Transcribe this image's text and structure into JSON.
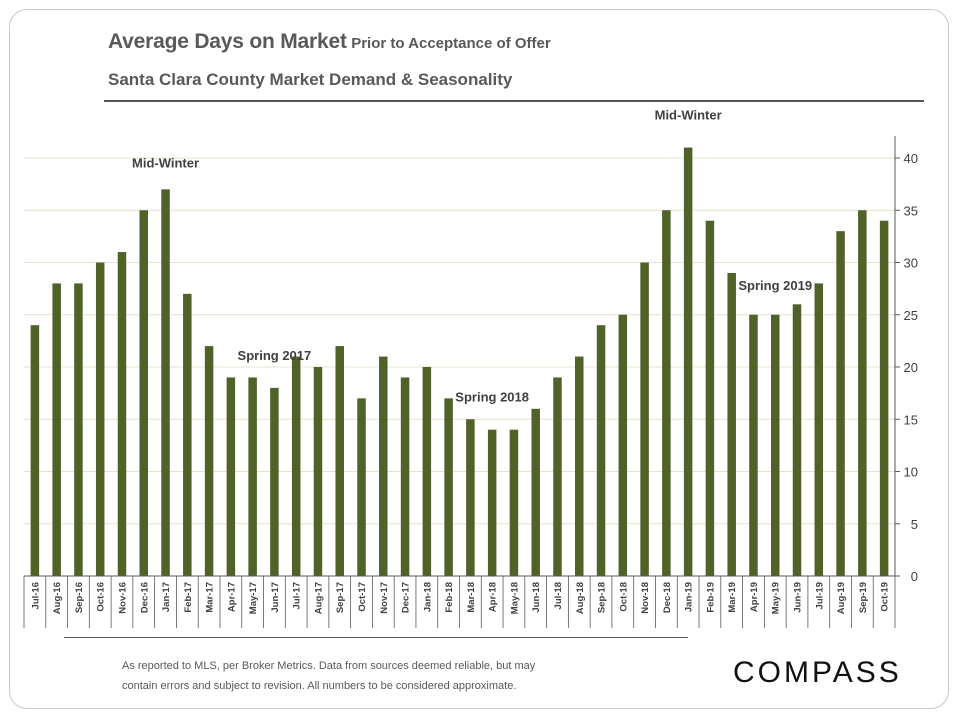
{
  "header": {
    "title": "Average Days on Market",
    "title_suffix": "Prior to Acceptance of Offer",
    "subtitle": "Santa Clara County Market Demand & Seasonality"
  },
  "footer": {
    "note_line1": "As reported to MLS, per Broker Metrics. Data from sources deemed reliable, but may",
    "note_line2": "contain errors and subject to revision. All numbers to be considered approximate.",
    "logo": "COMPASS"
  },
  "colors": {
    "bar": "#4f6228",
    "grid": "#e4e4cc",
    "axis": "#595959",
    "text": "#595959"
  },
  "chart_data": {
    "type": "bar",
    "title": "Average Days on Market",
    "subtitle": "Santa Clara County Market Demand & Seasonality",
    "xlabel": "",
    "ylabel": "",
    "ylim": [
      0,
      40
    ],
    "yticks": [
      0,
      5,
      10,
      15,
      20,
      25,
      30,
      35,
      40
    ],
    "y_axis_side": "right",
    "grid": true,
    "categories": [
      "Jul-16",
      "Aug-16",
      "Sep-16",
      "Oct-16",
      "Nov-16",
      "Dec-16",
      "Jan-17",
      "Feb-17",
      "Mar-17",
      "Apr-17",
      "May-17",
      "Jun-17",
      "Jul-17",
      "Aug-17",
      "Sep-17",
      "Oct-17",
      "Nov-17",
      "Dec-17",
      "Jan-18",
      "Feb-18",
      "Mar-18",
      "Apr-18",
      "May-18",
      "Jun-18",
      "Jul-18",
      "Aug-18",
      "Sep-18",
      "Oct-18",
      "Nov-18",
      "Dec-18",
      "Jan-19",
      "Feb-19",
      "Mar-19",
      "Apr-19",
      "May-19",
      "Jun-19",
      "Jul-19",
      "Aug-19",
      "Sep-19",
      "Oct-19"
    ],
    "values": [
      24,
      28,
      28,
      30,
      31,
      35,
      37,
      27,
      22,
      19,
      19,
      18,
      21,
      20,
      22,
      17,
      21,
      19,
      20,
      17,
      15,
      14,
      14,
      16,
      19,
      21,
      24,
      25,
      30,
      35,
      41,
      34,
      29,
      25,
      25,
      26,
      28,
      33,
      35,
      34
    ],
    "annotations": [
      {
        "text": "Mid-Winter",
        "category": "Jan-17"
      },
      {
        "text": "Spring 2017",
        "category": "Jun-17"
      },
      {
        "text": "Spring 2018",
        "category": "Apr-18"
      },
      {
        "text": "Mid-Winter",
        "category": "Jan-19"
      },
      {
        "text": "Spring 2019",
        "category": "May-19"
      }
    ]
  }
}
